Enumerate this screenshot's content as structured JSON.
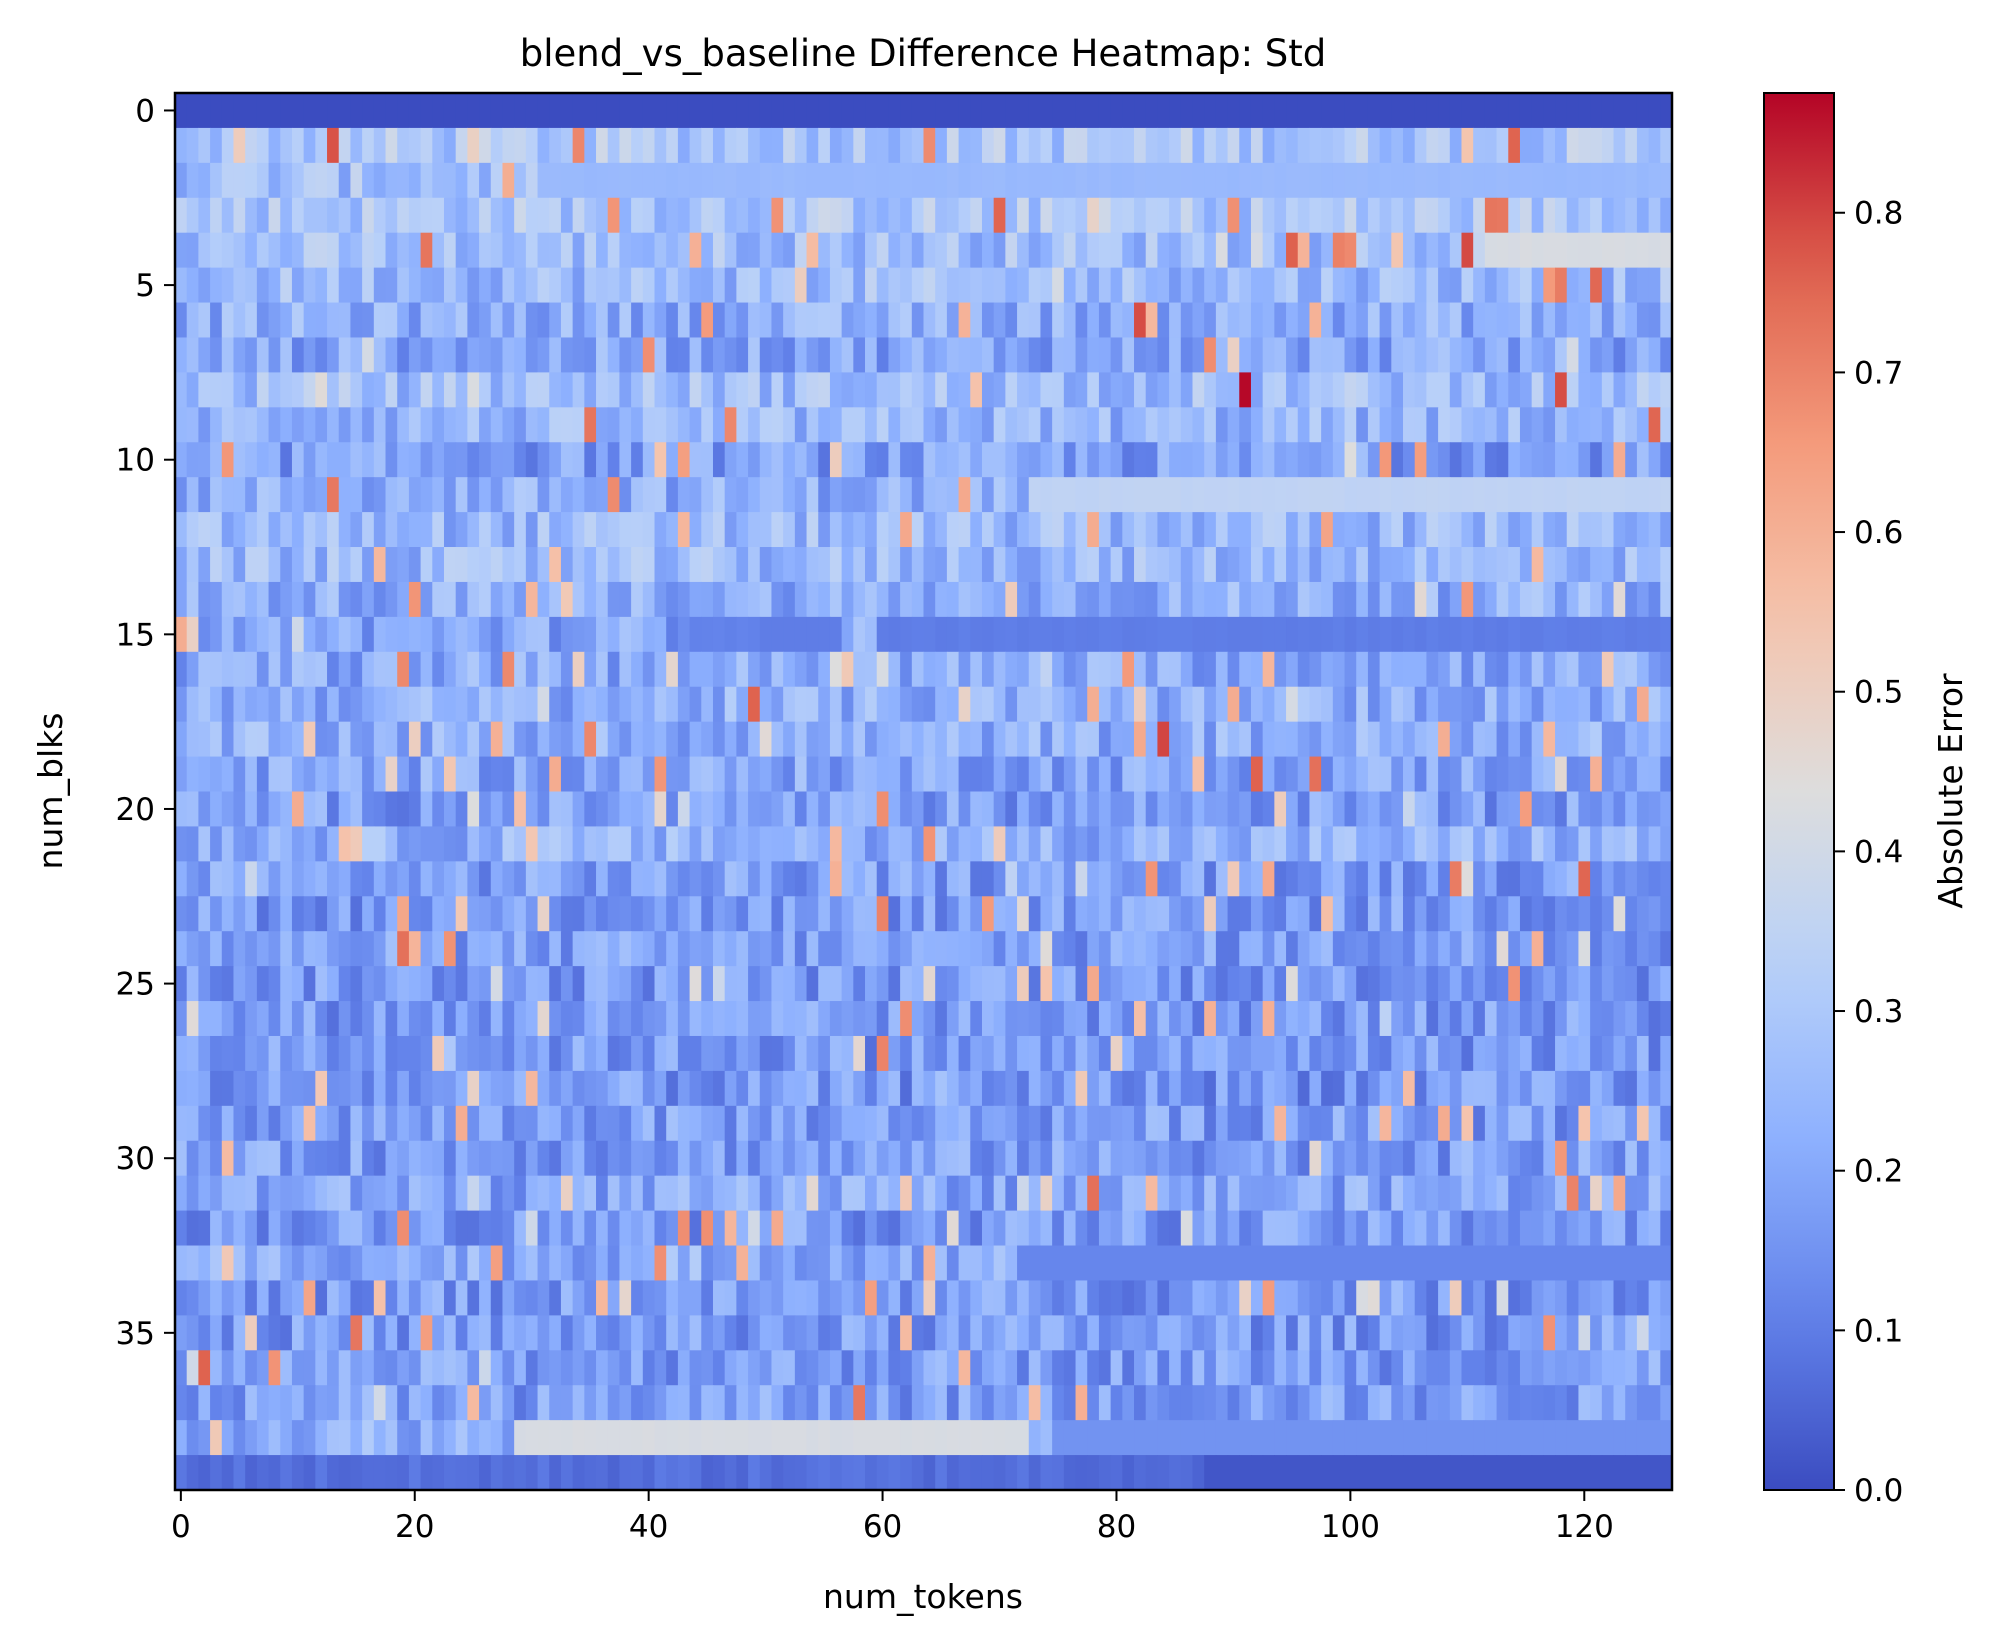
{
  "chart_data": {
    "type": "heatmap",
    "title": "blend_vs_baseline Difference Heatmap: Std",
    "xlabel": "num_tokens",
    "ylabel": "num_blks",
    "colorbar_label": "Absolute Error",
    "colormap": "coolwarm",
    "n_cols": 128,
    "n_rows": 40,
    "xlim": [
      -0.5,
      127.5
    ],
    "ylim": [
      39.5,
      -0.5
    ],
    "x_ticks": [
      0,
      20,
      40,
      60,
      80,
      100,
      120
    ],
    "y_ticks": [
      0,
      5,
      10,
      15,
      20,
      25,
      30,
      35
    ],
    "value_range": [
      0.0,
      0.875
    ],
    "colorbar_ticks": [
      "0.0",
      "0.1",
      "0.2",
      "0.3",
      "0.4",
      "0.5",
      "0.6",
      "0.7",
      "0.8"
    ],
    "row_summary": {
      "0": "all values 0.0 across every token",
      "2": "cols 0-30 mixed 0.2-0.65; cols 31-127 approx 0.25",
      "4": "cols 112-127 approx 0.42",
      "8": "peak value approx 0.87 at token 91",
      "11": "cols 73-127 approx 0.35",
      "15": "cols 44-127 approx 0.1",
      "33": "cols 72-127 approx 0.12",
      "38": "cols 29-72 approx 0.42; cols 75-127 approx 0.15",
      "39": "cols 0-87 approx 0.05-0.1; cols 88-127 approx 0.02"
    },
    "notable_cells": [
      {
        "row": 8,
        "col": 91,
        "value": 0.87
      },
      {
        "row": 5,
        "col": 121,
        "value": 0.75
      },
      {
        "row": 11,
        "col": 13,
        "value": 0.72
      },
      {
        "row": 27,
        "col": 60,
        "value": 0.7
      },
      {
        "row": 37,
        "col": 58,
        "value": 0.72
      },
      {
        "row": 7,
        "col": 88,
        "value": 0.68
      },
      {
        "row": 10,
        "col": 103,
        "value": 0.66
      },
      {
        "row": 22,
        "col": 93,
        "value": 0.62
      },
      {
        "row": 30,
        "col": 118,
        "value": 0.66
      },
      {
        "row": 31,
        "col": 119,
        "value": 0.7
      }
    ]
  }
}
